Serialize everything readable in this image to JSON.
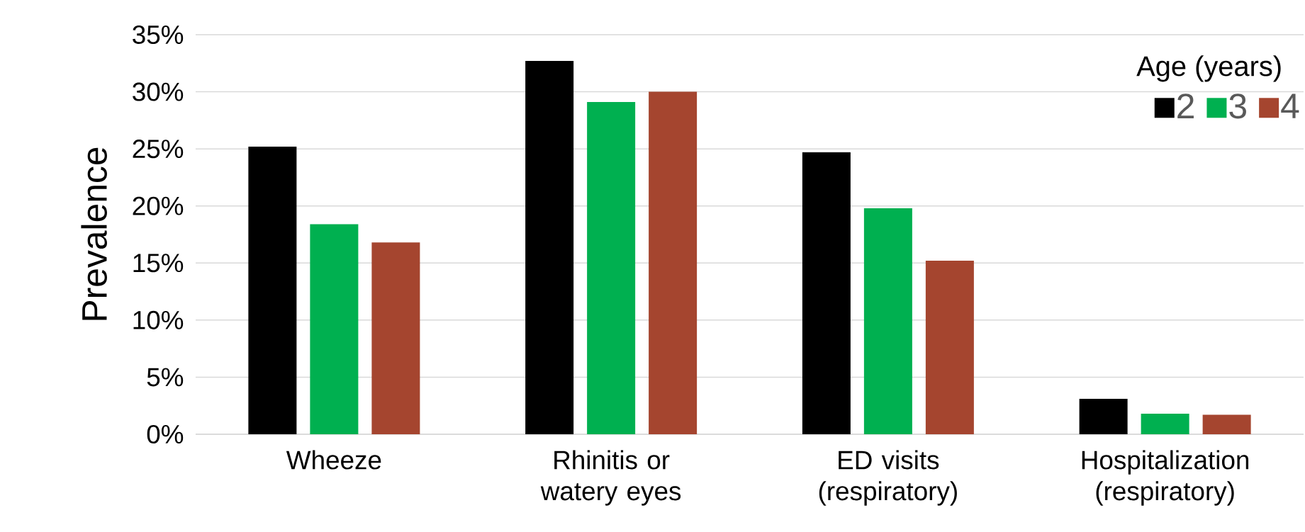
{
  "chart_data": {
    "type": "bar",
    "ylabel": "Prevalence",
    "legend_title": "Age (years)",
    "categories": [
      "Wheeze",
      "Rhinitis or watery eyes",
      "ED visits (respiratory)",
      "Hospitalization (respiratory)"
    ],
    "series": [
      {
        "name": "2",
        "color": "#000000",
        "values": [
          25.2,
          32.7,
          24.7,
          3.1
        ]
      },
      {
        "name": "3",
        "color": "#00b050",
        "values": [
          18.4,
          29.1,
          19.8,
          1.8
        ]
      },
      {
        "name": "4",
        "color": "#a5452f",
        "values": [
          16.8,
          30.0,
          15.2,
          1.7
        ]
      }
    ],
    "ylim": [
      0,
      35
    ],
    "yticks": [
      {
        "value": 0,
        "label": "0%"
      },
      {
        "value": 5,
        "label": "5%"
      },
      {
        "value": 10,
        "label": "10%"
      },
      {
        "value": 15,
        "label": "15%"
      },
      {
        "value": 20,
        "label": "20%"
      },
      {
        "value": 25,
        "label": "25%"
      },
      {
        "value": 30,
        "label": "30%"
      },
      {
        "value": 35,
        "label": "35%"
      }
    ],
    "grid": "y",
    "legend": "top right"
  }
}
